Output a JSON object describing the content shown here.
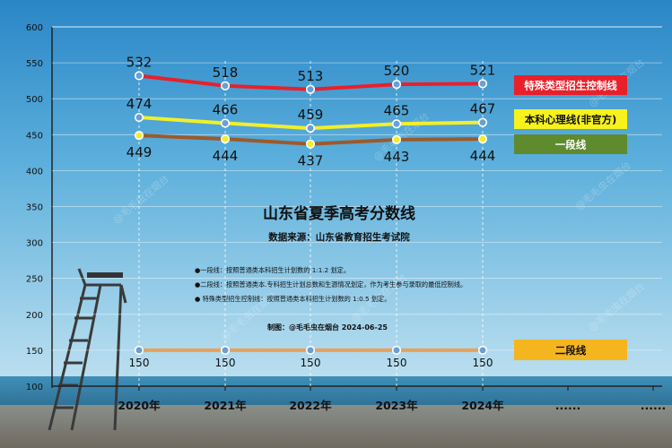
{
  "chart_data": {
    "type": "line",
    "title": "山东省夏季高考分数线",
    "subtitle": "数据来源：山东省教育招生考试院",
    "categories": [
      "2020年",
      "2021年",
      "2022年",
      "2023年",
      "2024年"
    ],
    "extra_ticks": [
      "......",
      "......"
    ],
    "ylim": [
      100,
      600
    ],
    "yticks": [
      100,
      150,
      200,
      250,
      300,
      350,
      400,
      450,
      500,
      550,
      600
    ],
    "series": [
      {
        "name": "特殊类型招生控制线",
        "values": [
          532,
          518,
          513,
          520,
          521
        ],
        "color": "#e8202a",
        "label_bg": "#e8202a",
        "label_color": "#ffffff"
      },
      {
        "name": "本科心理线(非官方)",
        "values": [
          474,
          466,
          459,
          465,
          467
        ],
        "color": "#f2ef2a",
        "label_bg": "#f7f21c",
        "label_color": "#111111"
      },
      {
        "name": "一段线",
        "values": [
          449,
          444,
          437,
          443,
          444
        ],
        "color": "#9c5a2a",
        "label_bg": "#5f8a2e",
        "label_color": "#ffffff"
      },
      {
        "name": "二段线",
        "values": [
          150,
          150,
          150,
          150,
          150
        ],
        "color": "#e8a15a",
        "label_bg": "#f5b51e",
        "label_color": "#111111"
      }
    ],
    "notes": [
      "●一段线：按照普通类本科招生计划数的 1:1.2 划定。",
      "●二段线：按照普通类本.专科招生计划总数和生源情况划定，作为考生参与录取的最低控制线。",
      "● 特殊类型招生控制线：按照普通类本科招生计划数的 1:0.5 划定。"
    ],
    "credit": "制图：@毛毛虫在烟台      2024-06-25",
    "watermark": "@毛毛虫在烟台",
    "grid": true
  }
}
